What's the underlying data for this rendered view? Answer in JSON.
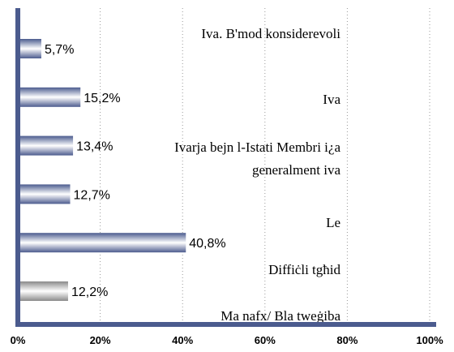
{
  "chart_data": {
    "type": "hbar",
    "categories": [
      [
        "Iva. B'mod konsiderevoli"
      ],
      [
        "Iva"
      ],
      [
        "Ivarja bejn l-Istati Membri i¿a",
        "generalment iva"
      ],
      [
        "Le"
      ],
      [
        "Diffiċli tgħid"
      ],
      [
        "Ma nafx/ Bla tweġiba"
      ]
    ],
    "values": [
      5.7,
      15.2,
      13.4,
      12.7,
      40.8,
      12.2
    ],
    "value_labels": [
      "5,7%",
      "15,2%",
      "13,4%",
      "12,7%",
      "40,8%",
      "12,2%"
    ],
    "colors": [
      "#4b5b8e",
      "#4b5b8e",
      "#4b5b8e",
      "#4b5b8e",
      "#4b5b8e",
      "#8a8a8a"
    ],
    "xlim": [
      0,
      100
    ],
    "xticks": [
      {
        "value": 0,
        "label": "0%"
      },
      {
        "value": 20,
        "label": "20%"
      },
      {
        "value": 40,
        "label": "40%"
      },
      {
        "value": 60,
        "label": "60%"
      },
      {
        "value": 80,
        "label": "80%"
      },
      {
        "value": 100,
        "label": "100%"
      }
    ],
    "grid": true
  }
}
